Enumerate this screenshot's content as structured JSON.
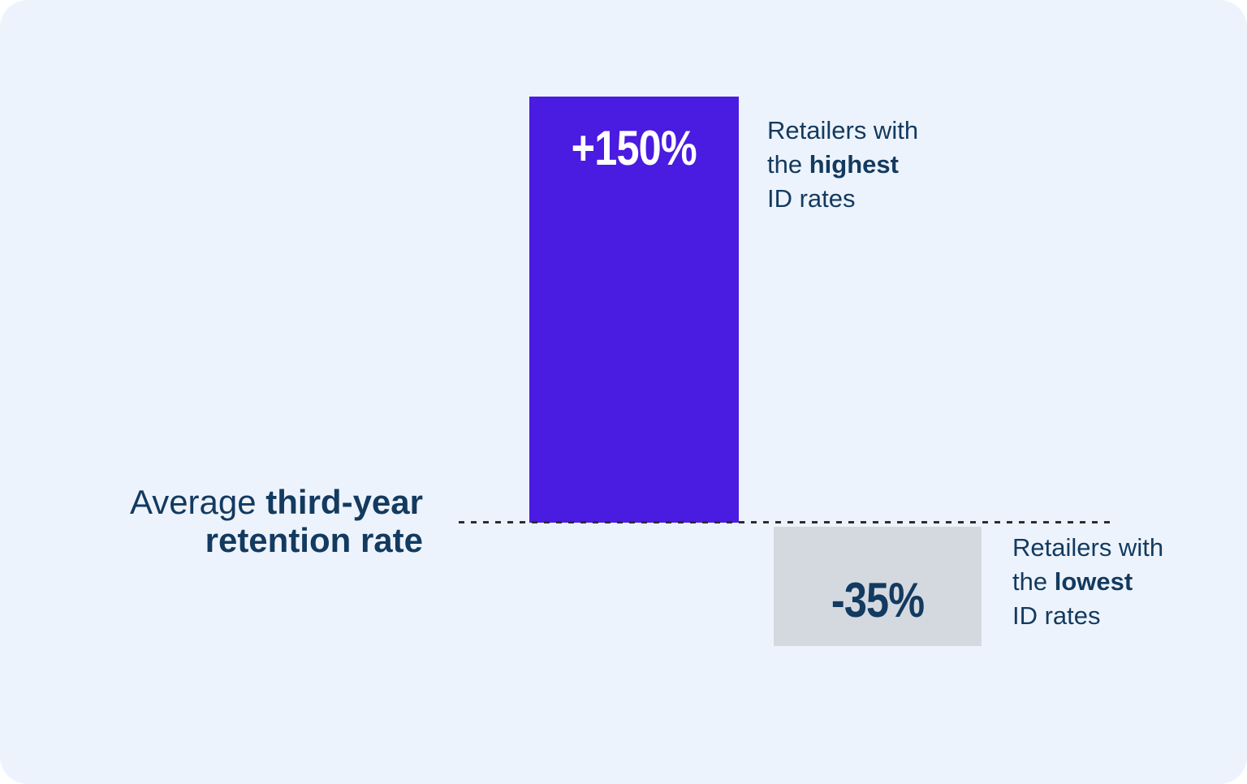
{
  "chart_data": {
    "type": "bar",
    "title": "",
    "categories": [
      "Retailers with the highest ID rates",
      "Retailers with the lowest ID rates"
    ],
    "values": [
      150,
      -35
    ],
    "value_labels": [
      "+150%",
      "-35%"
    ],
    "baseline_label": "Average third-year retention rate",
    "baseline_value": 0,
    "bar_colors": [
      "#4a1be0",
      "#d4d9e0"
    ],
    "grid": false,
    "legend_position": "labels-beside-bars",
    "orientation": "vertical",
    "baseline_style": "dashed"
  },
  "axis_label": {
    "line1_regular": "Average ",
    "line1_bold": "third-year",
    "line2_bold": "retention rate"
  },
  "bars": {
    "high": {
      "value_label": "+150%"
    },
    "low": {
      "value_label": "-35%"
    }
  },
  "annotations": {
    "high": {
      "line1": "Retailers with",
      "line2_prefix": "the ",
      "line2_bold": "highest",
      "line3": "ID rates"
    },
    "low": {
      "line1": "Retailers with",
      "line2_prefix": "the ",
      "line2_bold": "lowest",
      "line3": "ID rates"
    }
  },
  "colors": {
    "background": "#edf3fc",
    "bar_high": "#4a1be0",
    "bar_low": "#d4d9e0",
    "text_navy": "#133a5f",
    "value_high_text": "#ffffff",
    "dash": "#2b2f33"
  }
}
